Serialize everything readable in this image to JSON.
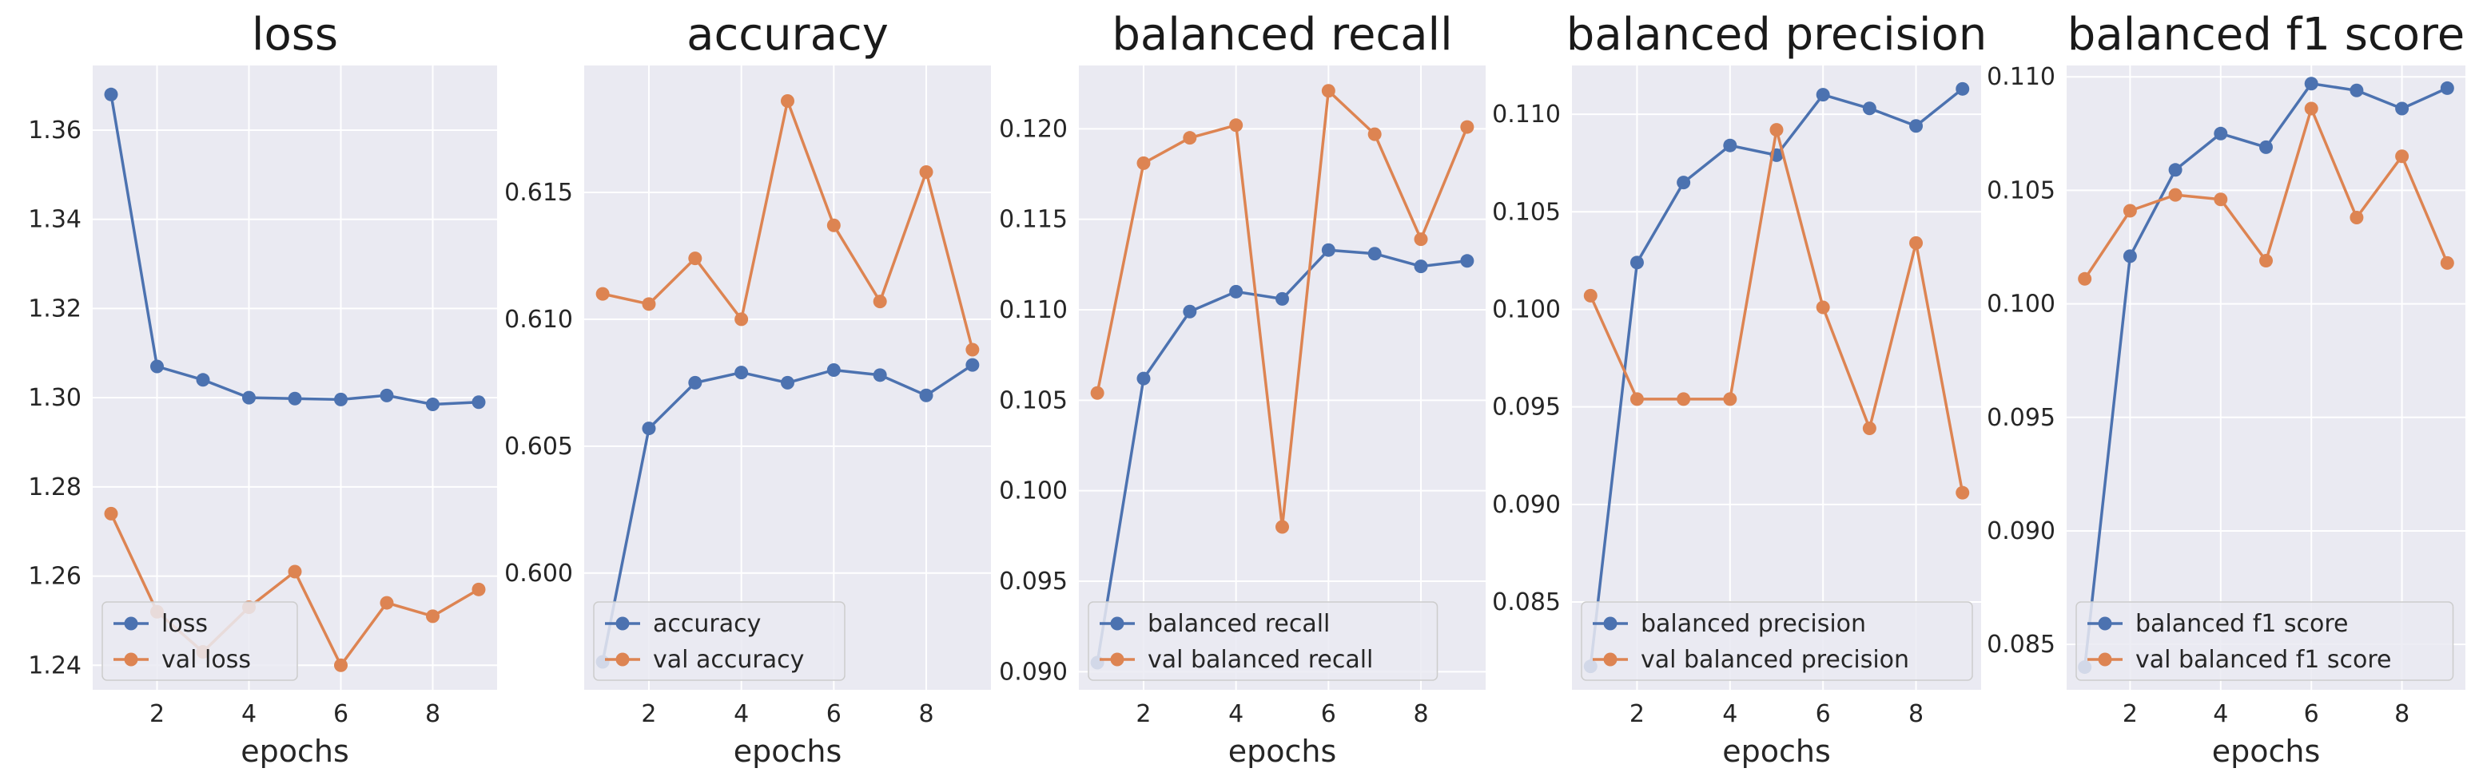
{
  "colors": {
    "train": "#4c72b0",
    "val": "#dd8452",
    "panel_bg": "#eaeaf2",
    "grid": "#ffffff"
  },
  "chart_data": [
    {
      "type": "line",
      "title": "loss",
      "xlabel": "epochs",
      "x": [
        1,
        2,
        3,
        4,
        5,
        6,
        7,
        8,
        9
      ],
      "xlim": [
        0.6,
        9.4
      ],
      "xticks": [
        2,
        4,
        6,
        8
      ],
      "ylim": [
        1.2345,
        1.3745
      ],
      "yticks": [
        1.24,
        1.26,
        1.28,
        1.3,
        1.32,
        1.34,
        1.36
      ],
      "ytick_labels": [
        "1.24",
        "1.26",
        "1.28",
        "1.30",
        "1.32",
        "1.34",
        "1.36"
      ],
      "legend": "bottom-left",
      "series": [
        {
          "name": "loss",
          "color": "#4c72b0",
          "values": [
            1.368,
            1.307,
            1.304,
            1.3,
            1.2998,
            1.2996,
            1.3005,
            1.2985,
            1.299
          ]
        },
        {
          "name": "val loss",
          "color": "#dd8452",
          "values": [
            1.274,
            1.252,
            1.243,
            1.253,
            1.261,
            1.24,
            1.254,
            1.251,
            1.257
          ]
        }
      ]
    },
    {
      "type": "line",
      "title": "accuracy",
      "xlabel": "epochs",
      "x": [
        1,
        2,
        3,
        4,
        5,
        6,
        7,
        8,
        9
      ],
      "xlim": [
        0.6,
        9.4
      ],
      "xticks": [
        2,
        4,
        6,
        8
      ],
      "ylim": [
        0.5954,
        0.62
      ],
      "yticks": [
        0.6,
        0.605,
        0.61,
        0.615
      ],
      "ytick_labels": [
        "0.600",
        "0.605",
        "0.610",
        "0.615"
      ],
      "legend": "bottom-left",
      "series": [
        {
          "name": "accuracy",
          "color": "#4c72b0",
          "values": [
            0.5965,
            0.6057,
            0.6075,
            0.6079,
            0.6075,
            0.608,
            0.6078,
            0.607,
            0.6082
          ]
        },
        {
          "name": "val accuracy",
          "color": "#dd8452",
          "values": [
            0.611,
            0.6106,
            0.6124,
            0.61,
            0.6186,
            0.6137,
            0.6107,
            0.6158,
            0.6088
          ]
        }
      ]
    },
    {
      "type": "line",
      "title": "balanced recall",
      "xlabel": "epochs",
      "x": [
        1,
        2,
        3,
        4,
        5,
        6,
        7,
        8,
        9
      ],
      "xlim": [
        0.6,
        9.4
      ],
      "xticks": [
        2,
        4,
        6,
        8
      ],
      "ylim": [
        0.089,
        0.1235
      ],
      "yticks": [
        0.09,
        0.095,
        0.1,
        0.105,
        0.11,
        0.115,
        0.12
      ],
      "ytick_labels": [
        "0.090",
        "0.095",
        "0.100",
        "0.105",
        "0.110",
        "0.115",
        "0.120"
      ],
      "legend": "bottom-left",
      "series": [
        {
          "name": "balanced recall",
          "color": "#4c72b0",
          "values": [
            0.0905,
            0.1062,
            0.1099,
            0.111,
            0.1106,
            0.1133,
            0.1131,
            0.1124,
            0.1127
          ]
        },
        {
          "name": "val balanced recall",
          "color": "#dd8452",
          "values": [
            0.1054,
            0.1181,
            0.1195,
            0.1202,
            0.098,
            0.1221,
            0.1197,
            0.1139,
            0.1201
          ]
        }
      ]
    },
    {
      "type": "line",
      "title": "balanced precision",
      "xlabel": "epochs",
      "x": [
        1,
        2,
        3,
        4,
        5,
        6,
        7,
        8,
        9
      ],
      "xlim": [
        0.6,
        9.4
      ],
      "xticks": [
        2,
        4,
        6,
        8
      ],
      "ylim": [
        0.0805,
        0.1125
      ],
      "yticks": [
        0.085,
        0.09,
        0.095,
        0.1,
        0.105,
        0.11
      ],
      "ytick_labels": [
        "0.085",
        "0.090",
        "0.095",
        "0.100",
        "0.105",
        "0.110"
      ],
      "legend": "bottom-left",
      "series": [
        {
          "name": "balanced precision",
          "color": "#4c72b0",
          "values": [
            0.0817,
            0.1024,
            0.1065,
            0.1084,
            0.1079,
            0.111,
            0.1103,
            0.1094,
            0.1113
          ]
        },
        {
          "name": "val balanced precision",
          "color": "#dd8452",
          "values": [
            0.1007,
            0.0954,
            0.0954,
            0.0954,
            0.1092,
            0.1001,
            0.0939,
            0.1034,
            0.0906
          ]
        }
      ]
    },
    {
      "type": "line",
      "title": "balanced f1 score",
      "xlabel": "epochs",
      "x": [
        1,
        2,
        3,
        4,
        5,
        6,
        7,
        8,
        9
      ],
      "xlim": [
        0.6,
        9.4
      ],
      "xticks": [
        2,
        4,
        6,
        8
      ],
      "ylim": [
        0.083,
        0.1105
      ],
      "yticks": [
        0.085,
        0.09,
        0.095,
        0.1,
        0.105,
        0.11
      ],
      "ytick_labels": [
        "0.085",
        "0.090",
        "0.095",
        "0.100",
        "0.105",
        "0.110"
      ],
      "legend": "bottom-left",
      "series": [
        {
          "name": "balanced f1 score",
          "color": "#4c72b0",
          "values": [
            0.084,
            0.1021,
            0.1059,
            0.1075,
            0.1069,
            0.1097,
            0.1094,
            0.1086,
            0.1095
          ]
        },
        {
          "name": "val balanced f1 score",
          "color": "#dd8452",
          "values": [
            0.1011,
            0.1041,
            0.1048,
            0.1046,
            0.1019,
            0.1086,
            0.1038,
            0.1065,
            0.1018
          ]
        }
      ]
    }
  ]
}
